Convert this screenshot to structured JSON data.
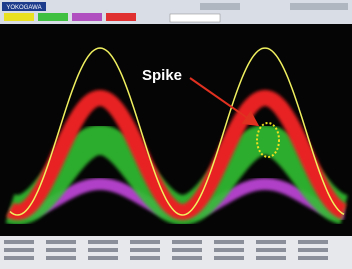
{
  "logo": "YOKOGAWA",
  "annotation": "Spike"
}
